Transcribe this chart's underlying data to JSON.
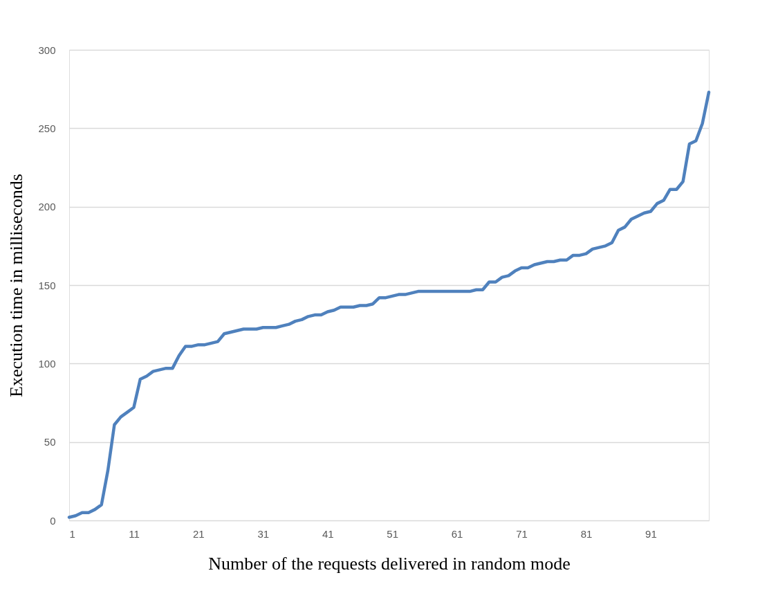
{
  "chart_data": {
    "type": "line",
    "xlabel": "Number of the requests delivered in random mode",
    "ylabel": "Execution time in milliseconds",
    "x": [
      1,
      2,
      3,
      4,
      5,
      6,
      7,
      8,
      9,
      10,
      11,
      12,
      13,
      14,
      15,
      16,
      17,
      18,
      19,
      20,
      21,
      22,
      23,
      24,
      25,
      26,
      27,
      28,
      29,
      30,
      31,
      32,
      33,
      34,
      35,
      36,
      37,
      38,
      39,
      40,
      41,
      42,
      43,
      44,
      45,
      46,
      47,
      48,
      49,
      50,
      51,
      52,
      53,
      54,
      55,
      56,
      57,
      58,
      59,
      60,
      61,
      62,
      63,
      64,
      65,
      66,
      67,
      68,
      69,
      70,
      71,
      72,
      73,
      74,
      75,
      76,
      77,
      78,
      79,
      80,
      81,
      82,
      83,
      84,
      85,
      86,
      87,
      88,
      89,
      90,
      91,
      92,
      93,
      94,
      95,
      96,
      97,
      98,
      99,
      100
    ],
    "series": [
      {
        "color": "#4f81bd",
        "values": [
          2,
          3,
          5,
          5,
          7,
          10,
          32,
          61,
          66,
          69,
          72,
          90,
          92,
          95,
          96,
          97,
          97,
          105,
          111,
          111,
          112,
          112,
          113,
          114,
          119,
          120,
          121,
          122,
          122,
          122,
          123,
          123,
          123,
          124,
          125,
          127,
          128,
          130,
          131,
          131,
          133,
          134,
          136,
          136,
          136,
          137,
          137,
          138,
          142,
          142,
          143,
          144,
          144,
          145,
          146,
          146,
          146,
          146,
          146,
          146,
          146,
          146,
          146,
          147,
          147,
          152,
          152,
          155,
          156,
          159,
          161,
          161,
          163,
          164,
          165,
          165,
          166,
          166,
          169,
          169,
          170,
          173,
          174,
          175,
          177,
          185,
          187,
          192,
          194,
          196,
          197,
          202,
          204,
          211,
          211,
          216,
          240,
          242,
          253,
          273
        ]
      }
    ],
    "xlim": [
      1,
      100
    ],
    "xticks": [
      1,
      11,
      21,
      31,
      41,
      51,
      61,
      71,
      81,
      91
    ],
    "ylim": [
      0,
      300
    ],
    "yticks": [
      0,
      50,
      100,
      150,
      200,
      250,
      300
    ],
    "grid": "y",
    "legend": false,
    "marker": "none",
    "line_style": "solid"
  }
}
